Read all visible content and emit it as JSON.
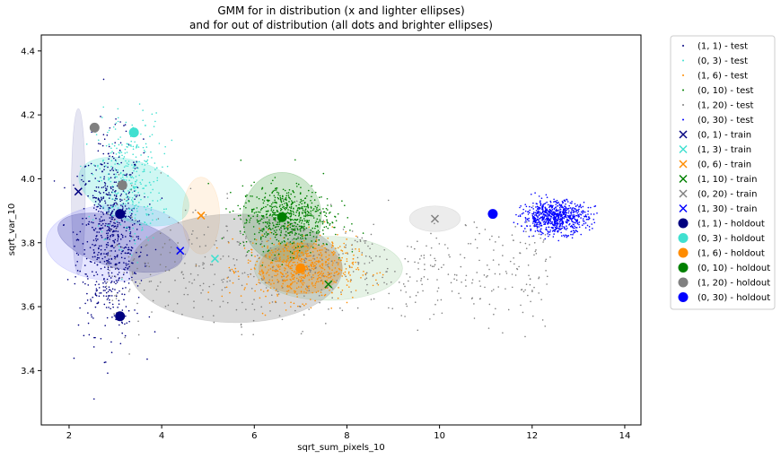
{
  "chart_data": {
    "type": "scatter",
    "title_line1": "GMM for in distribution (x and lighter ellipses)",
    "title_line2": "and for out of distribution (all dots and brighter ellipses)",
    "xlabel": "sqrt_sum_pixels_10",
    "ylabel": "sqrt_var_10",
    "xlim": [
      1.4,
      14.35
    ],
    "ylim": [
      3.23,
      4.45
    ],
    "xticks": [
      2,
      4,
      6,
      8,
      10,
      12,
      14
    ],
    "yticks": [
      3.4,
      3.6,
      3.8,
      4.0,
      4.2,
      4.4
    ],
    "grid": false,
    "legend_position": "outside-right",
    "test_clouds": [
      {
        "name": "(1, 1) - test",
        "color": "#000080",
        "cx": 2.9,
        "cy": 3.82,
        "sx": 0.35,
        "sy": 0.15,
        "n": 700
      },
      {
        "name": "(0, 3) - test",
        "color": "#40e0d0",
        "cx": 3.3,
        "cy": 4.0,
        "sx": 0.35,
        "sy": 0.1,
        "n": 320
      },
      {
        "name": "(1, 6) - test",
        "color": "#ff8c00",
        "cx": 7.0,
        "cy": 3.72,
        "sx": 0.6,
        "sy": 0.05,
        "n": 650
      },
      {
        "name": "(0, 10) - test",
        "color": "#008000",
        "cx": 6.7,
        "cy": 3.88,
        "sx": 0.5,
        "sy": 0.05,
        "n": 650
      },
      {
        "name": "(1, 20) - test",
        "color": "#808080",
        "cx": 6.0,
        "cy": 3.65,
        "sx": 2.0,
        "sy": 0.1,
        "n": 600
      },
      {
        "name": "(0, 30) - test",
        "color": "#0000ff",
        "cx": 12.5,
        "cy": 3.88,
        "sx": 0.35,
        "sy": 0.025,
        "n": 750
      }
    ],
    "train_markers": [
      {
        "name": "(0, 1) - train",
        "color": "#000080",
        "x": 2.2,
        "y": 3.96
      },
      {
        "name": "(1, 3) - train",
        "color": "#40e0d0",
        "x": 5.15,
        "y": 3.75
      },
      {
        "name": "(0, 6) - train",
        "color": "#ff8c00",
        "x": 4.85,
        "y": 3.885
      },
      {
        "name": "(1, 10) - train",
        "color": "#008000",
        "x": 7.6,
        "y": 3.67
      },
      {
        "name": "(0, 20) - train",
        "color": "#808080",
        "x": 9.9,
        "y": 3.875
      },
      {
        "name": "(1, 30) - train",
        "color": "#0000ff",
        "x": 4.4,
        "y": 3.775
      }
    ],
    "holdout_markers": [
      {
        "name": "(1, 1) - holdout",
        "color": "#000080",
        "x": 3.1,
        "y": 3.57
      },
      {
        "name": "(0, 3) - holdout",
        "color": "#40e0d0",
        "x": 3.4,
        "y": 4.145
      },
      {
        "name": "(1, 6) - holdout",
        "color": "#ff8c00",
        "x": 7.0,
        "y": 3.72
      },
      {
        "name": "(0, 10) - holdout",
        "color": "#008000",
        "x": 6.6,
        "y": 3.88
      },
      {
        "name": "(1, 20) - holdout",
        "color": "#808080",
        "x": 2.55,
        "y": 4.16
      },
      {
        "name": "(0, 30) - holdout",
        "color": "#0000ff",
        "x": 11.15,
        "y": 3.89
      }
    ],
    "extra_markers": [
      {
        "kind": "train",
        "color": "#000080",
        "x": 3.15,
        "y": 3.89
      },
      {
        "kind": "train",
        "color": "#000080",
        "x": 3.15,
        "y": 3.98
      },
      {
        "kind": "holdout",
        "color": "#000080",
        "x": 3.1,
        "y": 3.89
      },
      {
        "kind": "holdout",
        "color": "#808080",
        "x": 3.15,
        "y": 3.98
      }
    ],
    "ellipses": [
      {
        "color": "#000080",
        "cx": 2.2,
        "cy": 3.96,
        "rx": 0.15,
        "ry": 0.26,
        "angle": 0,
        "opacity": 0.1
      },
      {
        "color": "#0000ff",
        "cx": 3.05,
        "cy": 3.8,
        "rx": 1.55,
        "ry": 0.12,
        "angle": 0,
        "opacity": 0.1
      },
      {
        "color": "#000080",
        "cx": 3.1,
        "cy": 3.8,
        "rx": 0.55,
        "ry": 0.2,
        "angle": -75,
        "opacity": 0.2
      },
      {
        "color": "#40e0d0",
        "cx": 3.4,
        "cy": 3.96,
        "rx": 0.65,
        "ry": 0.18,
        "angle": -70,
        "opacity": 0.25
      },
      {
        "color": "#ff8c00",
        "cx": 4.85,
        "cy": 3.885,
        "rx": 0.4,
        "ry": 0.12,
        "angle": 0,
        "opacity": 0.1
      },
      {
        "color": "#008000",
        "cx": 6.6,
        "cy": 3.88,
        "rx": 0.85,
        "ry": 0.14,
        "angle": 0,
        "opacity": 0.2
      },
      {
        "color": "#008000",
        "cx": 7.6,
        "cy": 3.72,
        "rx": 1.6,
        "ry": 0.1,
        "angle": 0,
        "opacity": 0.1
      },
      {
        "color": "#ff8c00",
        "cx": 7.0,
        "cy": 3.72,
        "rx": 0.9,
        "ry": 0.08,
        "angle": 0,
        "opacity": 0.3
      },
      {
        "color": "#808080",
        "cx": 5.6,
        "cy": 3.72,
        "rx": 2.3,
        "ry": 0.17,
        "angle": 0,
        "opacity": 0.3
      },
      {
        "color": "#808080",
        "cx": 9.9,
        "cy": 3.875,
        "rx": 0.55,
        "ry": 0.04,
        "angle": 0,
        "opacity": 0.15
      }
    ]
  }
}
